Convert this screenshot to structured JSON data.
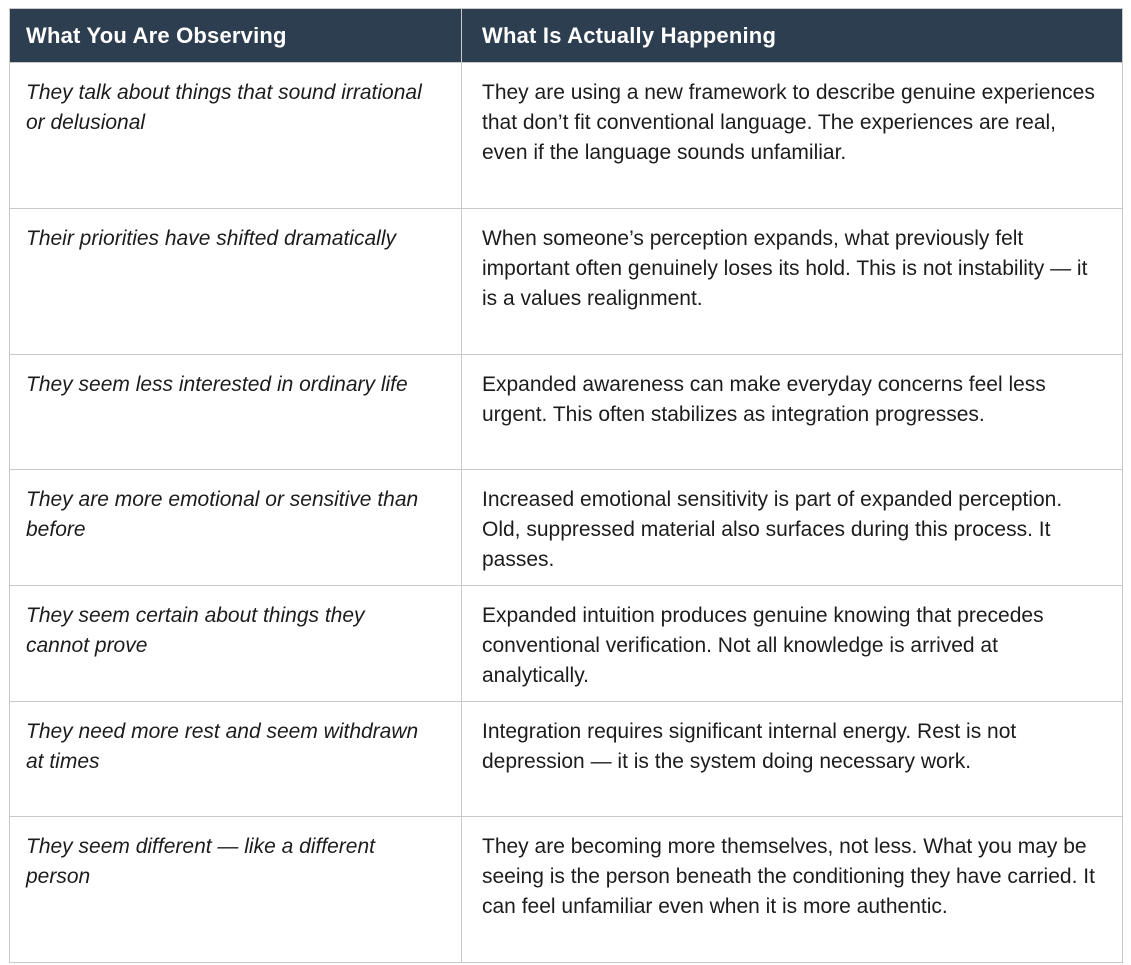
{
  "table": {
    "columns": [
      "What You Are Observing",
      "What Is Actually Happening"
    ],
    "rows": [
      {
        "observing": "They talk about things that sound irrational or delusional",
        "happening": "They are using a new framework to describe genuine experiences that don’t fit conventional language. The experiences are real, even if the language sounds unfamiliar."
      },
      {
        "observing": "Their priorities have shifted dramatically",
        "happening": "When someone’s perception expands, what previously felt important often genuinely loses its hold. This is not instability — it is a values realignment."
      },
      {
        "observing": "They seem less interested in ordinary life",
        "happening": "Expanded awareness can make everyday concerns feel less urgent. This often stabilizes as integration progresses."
      },
      {
        "observing": "They are more emotional or sensitive than before",
        "happening": "Increased emotional sensitivity is part of expanded perception. Old, suppressed material also surfaces during this process. It passes."
      },
      {
        "observing": "They seem certain about things they cannot prove",
        "happening": "Expanded intuition produces genuine knowing that precedes conventional verification. Not all knowledge is arrived at analytically."
      },
      {
        "observing": "They need more rest and seem withdrawn at times",
        "happening": "Integration requires significant internal energy. Rest is not depression — it is the system doing necessary work."
      },
      {
        "observing": "They seem different — like a different person",
        "happening": "They are becoming more themselves, not less. What you may be seeing is the person beneath the conditioning they have carried. It can feel unfamiliar even when it is more authentic."
      }
    ]
  },
  "colors": {
    "header_bg": "#2d3e50",
    "header_text": "#ffffff",
    "border": "#c9c9c9",
    "body_text": "#1c1c1c"
  }
}
